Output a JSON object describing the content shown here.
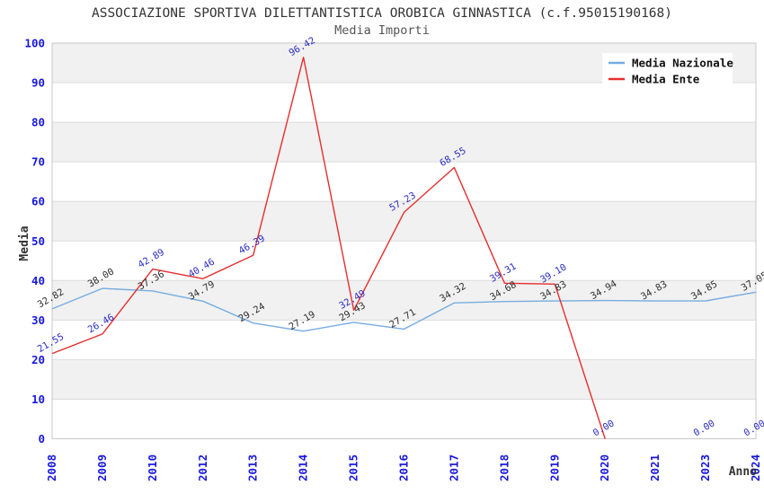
{
  "header": {
    "title": "ASSOCIAZIONE SPORTIVA DILETTANTISTICA OROBICA GINNASTICA (c.f.95015190168)",
    "subtitle": "Media Importi"
  },
  "chart_data": {
    "type": "line",
    "title": "ASSOCIAZIONE SPORTIVA DILETTANTISTICA OROBICA GINNASTICA (c.f.95015190168)",
    "subtitle": "Media Importi",
    "xlabel": "Anno",
    "ylabel": "Media",
    "ylim": [
      0,
      100
    ],
    "ytick_step": 10,
    "grid": true,
    "alternating_bands": true,
    "legend_position": "top-right",
    "categories": [
      "2008",
      "2009",
      "2010",
      "2012",
      "2013",
      "2014",
      "2015",
      "2016",
      "2017",
      "2018",
      "2019",
      "2020",
      "2021",
      "2023",
      "2024"
    ],
    "series": [
      {
        "name": "Media Nazionale",
        "color": "#76ace1",
        "label_color": "#2f2f2f",
        "values": [
          32.82,
          38.0,
          37.36,
          34.79,
          29.24,
          27.19,
          29.43,
          27.71,
          34.32,
          34.68,
          34.83,
          34.94,
          34.83,
          34.85,
          37.05
        ]
      },
      {
        "name": "Media Ente",
        "color": "#e62e2e",
        "label_color": "#2b2bc4",
        "values": [
          21.55,
          26.46,
          42.89,
          40.46,
          46.39,
          96.42,
          32.49,
          57.23,
          68.55,
          39.31,
          39.1,
          0.0,
          null,
          0.0,
          0.0
        ]
      }
    ]
  },
  "styles": {
    "tick_color": "#1717dd",
    "grid_color": "#dcdcdc",
    "band_color": "#f1f1f1",
    "border_color": "#c8c8c8",
    "axis_title_color": "#333333",
    "legend_bg": "#ffffff",
    "legend_text_color": "#111111",
    "title_color": "#333333",
    "subtitle_color": "#555555"
  }
}
